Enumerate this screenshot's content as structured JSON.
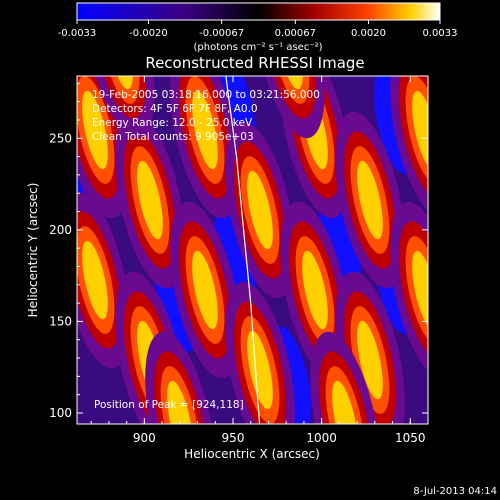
{
  "chart_data": {
    "type": "heatmap",
    "title": "Reconstructed RHESSI Image",
    "xlabel": "Heliocentric X (arcsec)",
    "ylabel": "Heliocentric Y (arcsec)",
    "xlim": [
      862,
      1060
    ],
    "ylim": [
      94,
      284
    ],
    "xticks": [
      900,
      950,
      1000,
      1050
    ],
    "yticks": [
      100,
      150,
      200,
      250
    ],
    "colorbar": {
      "position": "top",
      "range": [
        -0.0033,
        0.0033
      ],
      "ticks": [
        "-0.0033",
        "-0.0020",
        "-0.00067",
        "0.00067",
        "0.0020",
        "0.0033"
      ],
      "unit_label": "(photons cm⁻² s⁻¹ asec⁻²)",
      "colors": [
        "#0000ff",
        "#3a0080",
        "#000000",
        "#a00000",
        "#ff4000",
        "#ffd000",
        "#ffffff"
      ]
    },
    "annotations": [
      "19-Feb-2005 03:18:16.000 to 03:21:56.000",
      "Detectors: 4F 5F 6F 7F 8F, A0.0",
      "Energy Range: 12.0 - 25.0 keV",
      "Clean       Total counts: 9.905e+03"
    ],
    "position_note": "Position of Peak = [924,118]",
    "limb": [
      [
        946,
        284
      ],
      [
        952,
        240
      ],
      [
        956,
        200
      ],
      [
        960,
        160
      ],
      [
        963,
        120
      ],
      [
        965,
        94
      ]
    ]
  },
  "footer": {
    "timestamp": "8-Jul-2013 04:14"
  }
}
